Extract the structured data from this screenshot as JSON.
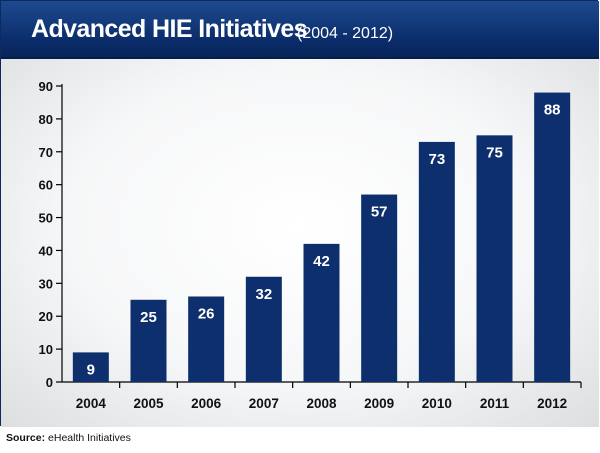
{
  "header": {
    "title": "Advanced HIE Initiatives",
    "subtitle": "(2004 - 2012)"
  },
  "source": {
    "label": "Source:",
    "text": "eHealth Initiatives"
  },
  "colors": {
    "bar": "#0e2f6e",
    "header": "#0b2d6b",
    "axis": "#000000"
  },
  "chart_data": {
    "type": "bar",
    "title": "Advanced HIE Initiatives (2004 - 2012)",
    "xlabel": "",
    "ylabel": "",
    "categories": [
      "2004",
      "2005",
      "2006",
      "2007",
      "2008",
      "2009",
      "2010",
      "2011",
      "2012"
    ],
    "values": [
      9,
      25,
      26,
      32,
      42,
      57,
      73,
      75,
      88
    ],
    "ylim": [
      0,
      90
    ],
    "yticks": [
      0,
      10,
      20,
      30,
      40,
      50,
      60,
      70,
      80,
      90
    ],
    "grid": false,
    "data_labels": true
  }
}
